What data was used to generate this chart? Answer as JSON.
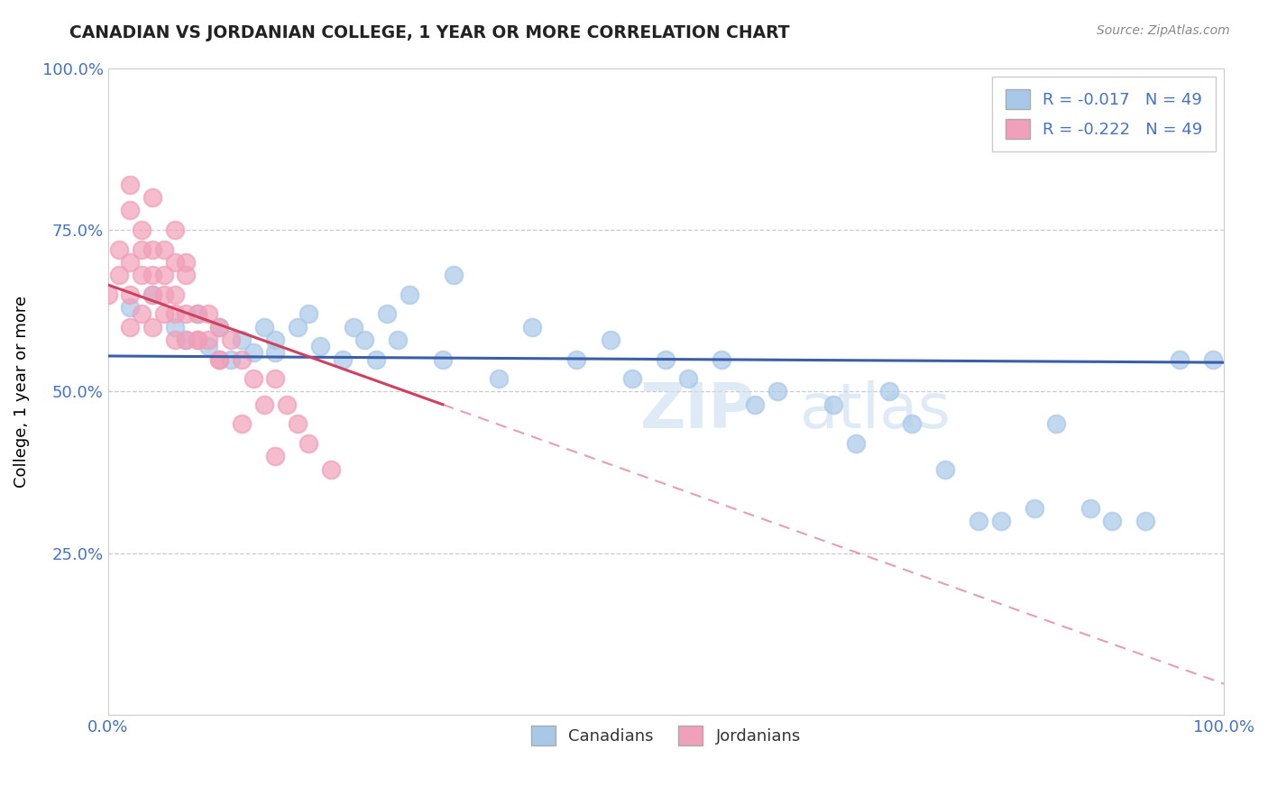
{
  "title": "CANADIAN VS JORDANIAN COLLEGE, 1 YEAR OR MORE CORRELATION CHART",
  "source": "Source: ZipAtlas.com",
  "ylabel": "College, 1 year or more",
  "xlim": [
    0.0,
    1.0
  ],
  "ylim": [
    0.0,
    1.0
  ],
  "legend_r1": "R = -0.017",
  "legend_n1": "N = 49",
  "legend_r2": "R = -0.222",
  "legend_n2": "N = 49",
  "legend_label1": "Canadians",
  "legend_label2": "Jordanians",
  "blue_dot_color": "#a8c8e8",
  "pink_dot_color": "#f0a0b8",
  "blue_line_color": "#3a5fa8",
  "pink_line_color": "#d04060",
  "canadians_x": [
    0.02,
    0.04,
    0.06,
    0.07,
    0.08,
    0.09,
    0.1,
    0.11,
    0.12,
    0.13,
    0.14,
    0.15,
    0.15,
    0.17,
    0.18,
    0.19,
    0.21,
    0.22,
    0.23,
    0.24,
    0.25,
    0.26,
    0.27,
    0.3,
    0.31,
    0.35,
    0.38,
    0.42,
    0.45,
    0.47,
    0.5,
    0.52,
    0.55,
    0.58,
    0.6,
    0.65,
    0.67,
    0.7,
    0.72,
    0.75,
    0.78,
    0.8,
    0.83,
    0.85,
    0.88,
    0.9,
    0.93,
    0.96,
    0.99
  ],
  "canadians_y": [
    0.63,
    0.65,
    0.6,
    0.58,
    0.62,
    0.57,
    0.6,
    0.55,
    0.58,
    0.56,
    0.6,
    0.58,
    0.56,
    0.6,
    0.62,
    0.57,
    0.55,
    0.6,
    0.58,
    0.55,
    0.62,
    0.58,
    0.65,
    0.55,
    0.68,
    0.52,
    0.6,
    0.55,
    0.58,
    0.52,
    0.55,
    0.52,
    0.55,
    0.48,
    0.5,
    0.48,
    0.42,
    0.5,
    0.45,
    0.38,
    0.3,
    0.3,
    0.32,
    0.45,
    0.32,
    0.3,
    0.3,
    0.55,
    0.55
  ],
  "jordanians_x": [
    0.0,
    0.01,
    0.01,
    0.02,
    0.02,
    0.02,
    0.02,
    0.03,
    0.03,
    0.03,
    0.03,
    0.04,
    0.04,
    0.04,
    0.04,
    0.05,
    0.05,
    0.05,
    0.06,
    0.06,
    0.06,
    0.06,
    0.07,
    0.07,
    0.07,
    0.08,
    0.08,
    0.09,
    0.09,
    0.1,
    0.1,
    0.11,
    0.12,
    0.13,
    0.14,
    0.15,
    0.16,
    0.17,
    0.18,
    0.2,
    0.02,
    0.05,
    0.08,
    0.12,
    0.15,
    0.07,
    0.1,
    0.04,
    0.06
  ],
  "jordanians_y": [
    0.65,
    0.68,
    0.72,
    0.78,
    0.82,
    0.7,
    0.65,
    0.75,
    0.68,
    0.62,
    0.72,
    0.68,
    0.65,
    0.72,
    0.6,
    0.62,
    0.68,
    0.72,
    0.65,
    0.7,
    0.58,
    0.62,
    0.62,
    0.68,
    0.58,
    0.62,
    0.58,
    0.62,
    0.58,
    0.6,
    0.55,
    0.58,
    0.55,
    0.52,
    0.48,
    0.52,
    0.48,
    0.45,
    0.42,
    0.38,
    0.6,
    0.65,
    0.58,
    0.45,
    0.4,
    0.7,
    0.55,
    0.8,
    0.75
  ],
  "blue_line_y_at_x0": 0.555,
  "blue_line_y_at_x1": 0.545,
  "pink_line_y_at_x0": 0.665,
  "pink_line_y_at_x03": 0.48
}
